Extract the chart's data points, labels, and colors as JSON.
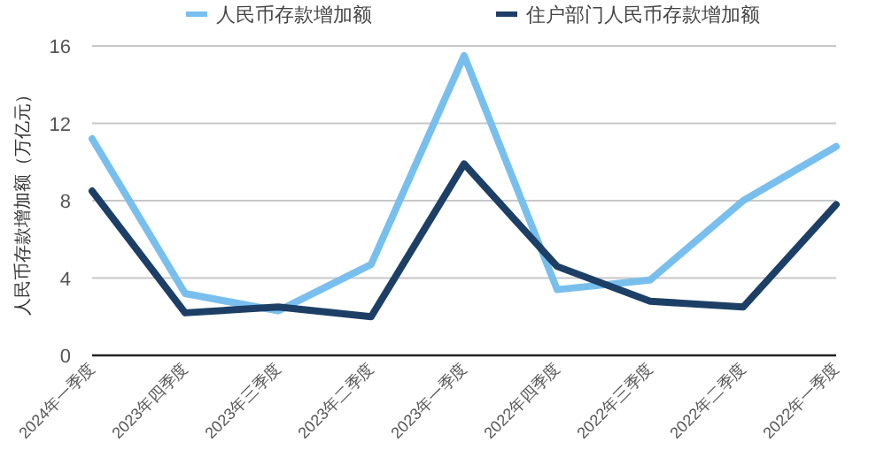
{
  "chart_data": {
    "type": "line",
    "ylabel": "人民币存款增加额（万亿元）",
    "categories": [
      "2024年一季度",
      "2023年四季度",
      "2023年三季度",
      "2023年二季度",
      "2023年一季度",
      "2022年四季度",
      "2022年三季度",
      "2022年二季度",
      "2022年一季度"
    ],
    "series": [
      {
        "name": "人民币存款增加额",
        "color": "#79bfee",
        "values": [
          11.2,
          3.2,
          2.3,
          4.7,
          15.5,
          3.4,
          3.9,
          8.0,
          10.8
        ]
      },
      {
        "name": "住户部门人民币存款增加额",
        "color": "#1d3f66",
        "values": [
          8.5,
          2.2,
          2.5,
          2.0,
          9.9,
          4.6,
          2.8,
          2.5,
          7.8
        ]
      }
    ],
    "ylim": [
      0,
      16
    ],
    "yticks": [
      0,
      4,
      8,
      12,
      16
    ],
    "grid": "y",
    "legend": "top",
    "marker": "none",
    "line_style": "solid"
  }
}
